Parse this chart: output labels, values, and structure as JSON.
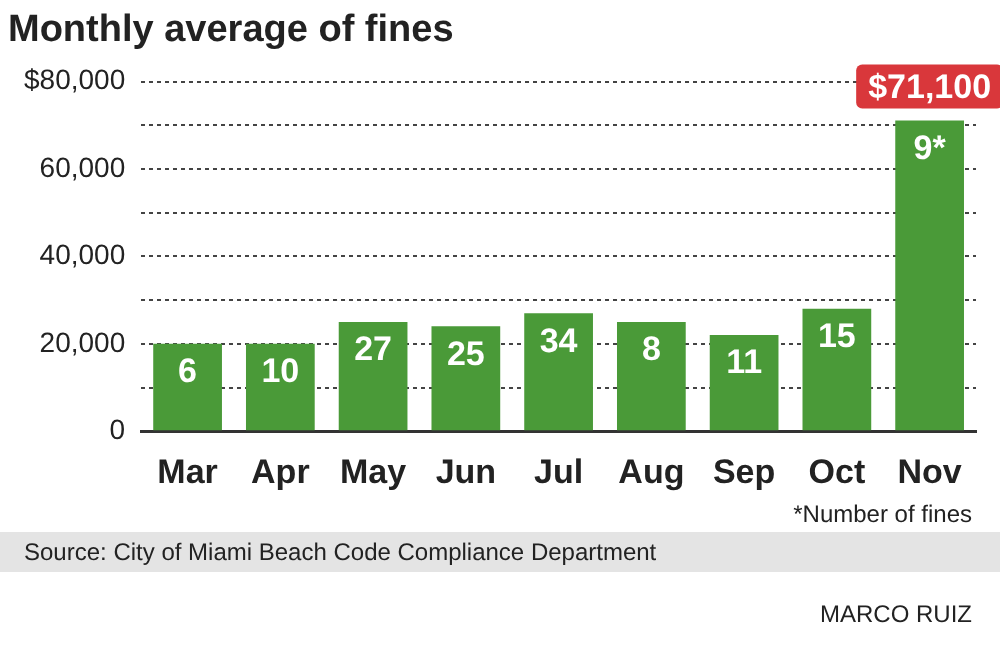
{
  "chart_data": {
    "type": "bar",
    "title": "Monthly average of fines",
    "categories": [
      "Mar",
      "Apr",
      "May",
      "Jun",
      "Jul",
      "Aug",
      "Sep",
      "Oct",
      "Nov"
    ],
    "values": [
      20000,
      20000,
      25000,
      24000,
      27000,
      25000,
      22000,
      28000,
      71100
    ],
    "color": "#4a9a38",
    "ylim": [
      0,
      80000
    ],
    "yticks": [
      0,
      {
        "value": 10000,
        "label": null
      },
      {
        "value": 20000,
        "label": "20,000"
      },
      {
        "value": 30000,
        "label": null
      },
      {
        "value": 40000,
        "label": "40,000"
      },
      {
        "value": 50000,
        "label": null
      },
      {
        "value": 60000,
        "label": "60,000"
      },
      {
        "value": 70000,
        "label": null
      },
      {
        "value": 80000,
        "label": "$80,000"
      }
    ],
    "grid": "y",
    "annotations": [
      {
        "text": "$71,100",
        "x": "Nov",
        "y": 71100
      },
      {
        "text": "6",
        "x": "Mar",
        "y": 20000
      },
      {
        "text": "10",
        "x": "Apr",
        "y": 20000
      },
      {
        "text": "27",
        "x": "May",
        "y": 25000
      },
      {
        "text": "25",
        "x": "Jun",
        "y": 24000
      },
      {
        "text": "34",
        "x": "Jul",
        "y": 27000
      },
      {
        "text": "8",
        "x": "Aug",
        "y": 25000
      },
      {
        "text": "11",
        "x": "Sep",
        "y": 22000
      },
      {
        "text": "15",
        "x": "Oct",
        "y": 28000
      },
      {
        "text": "9*",
        "x": "Nov",
        "y": 71100
      },
      "*Number of fines",
      "Source: City of Miami Beach Code Compliance Department",
      "MARCO RUIZ"
    ]
  }
}
